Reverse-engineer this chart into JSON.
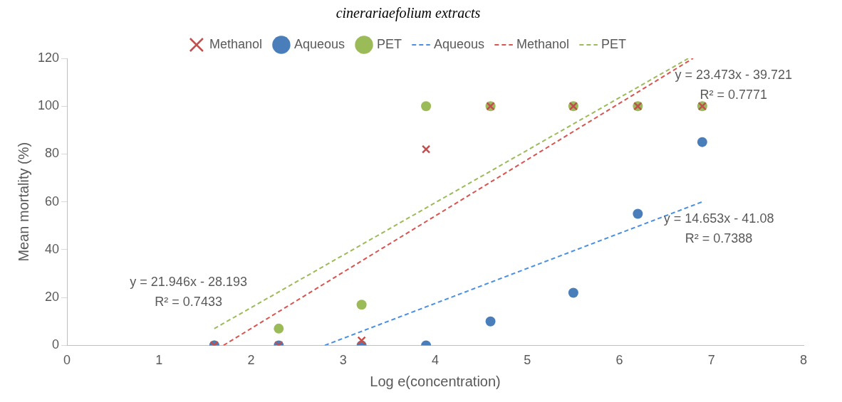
{
  "chart_data": {
    "type": "scatter",
    "title": "cinerariaefolium extracts",
    "xlabel": "Log e(concentration)",
    "ylabel": "Mean mortality (%)",
    "x": [
      1.6,
      2.3,
      3.2,
      3.9,
      4.6,
      5.5,
      6.2,
      6.9
    ],
    "series": [
      {
        "name": "Aqueous",
        "type": "scatter",
        "color": "#4a7ebb",
        "marker": "circle",
        "values": [
          0,
          0,
          0,
          0,
          10,
          22,
          55,
          85
        ]
      },
      {
        "name": "Methanol",
        "type": "scatter",
        "color": "#c0504d",
        "marker": "cross",
        "values": [
          0,
          0,
          2,
          82,
          100,
          100,
          100,
          100
        ]
      },
      {
        "name": "PET",
        "type": "scatter",
        "color": "#9bbb59",
        "marker": "circle",
        "values": [
          0,
          7,
          17,
          100,
          100,
          100,
          100,
          100
        ]
      },
      {
        "name": "Aqueous",
        "type": "line",
        "color": "#4a90e2",
        "marker": "none",
        "line_style": "dashed",
        "x": [
          2.8,
          6.9
        ],
        "values": [
          0,
          60
        ]
      },
      {
        "name": "Methanol",
        "type": "line",
        "color": "#d9534f",
        "marker": "none",
        "line_style": "dashed",
        "x": [
          1.7,
          6.8
        ],
        "values": [
          0,
          120
        ]
      },
      {
        "name": "PET",
        "type": "line",
        "color": "#9bbb59",
        "marker": "none",
        "line_style": "dashed",
        "x": [
          1.6,
          6.75
        ],
        "values": [
          7,
          120
        ]
      }
    ],
    "annotations": [
      "y = 21.946x - 28.193",
      "R² = 0.7433",
      "y = 23.473x - 39.721",
      "R² = 0.7771",
      "y = 14.653x - 41.08",
      "R² = 0.7388"
    ],
    "xlim": [
      0,
      8
    ],
    "xticks": [
      0,
      1,
      2,
      3,
      4,
      5,
      6,
      7,
      8
    ],
    "ylim": [
      0,
      120
    ],
    "yticks": [
      0,
      20,
      40,
      60,
      80,
      100,
      120
    ],
    "grid": false,
    "legend": "top"
  }
}
